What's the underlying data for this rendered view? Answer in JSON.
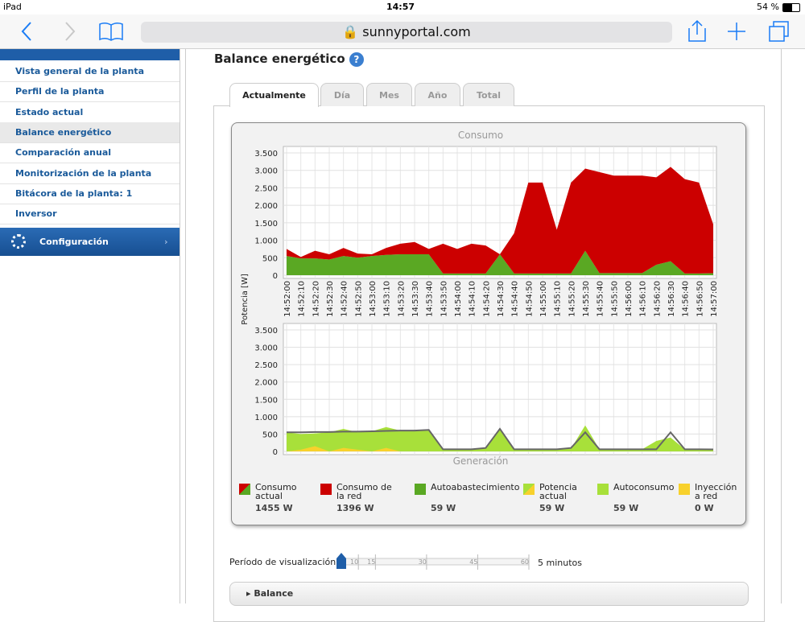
{
  "status_bar": {
    "device": "iPad",
    "time": "14:57",
    "battery": "54 %"
  },
  "browser": {
    "url": "sunnyportal.com"
  },
  "sidebar": {
    "items": [
      "Vista general de la planta",
      "Perfil de la planta",
      "Estado actual",
      "Balance energético",
      "Comparación anual",
      "Monitorización de la planta",
      "Bitácora de la planta: 1",
      "Inversor"
    ],
    "active": 3,
    "config": "Configuración"
  },
  "page": {
    "title": "Balance energético",
    "tabs": [
      "Actualmente",
      "Día",
      "Mes",
      "Año",
      "Total"
    ],
    "active_tab": 0
  },
  "chart_data": [
    {
      "type": "area",
      "title": "Consumo",
      "ylabel": "Potencia [W]",
      "categories": [
        "14:52:00",
        "14:52:10",
        "14:52:20",
        "14:52:30",
        "14:52:40",
        "14:52:50",
        "14:53:00",
        "14:53:10",
        "14:53:20",
        "14:53:30",
        "14:53:40",
        "14:53:50",
        "14:54:00",
        "14:54:10",
        "14:54:20",
        "14:54:30",
        "14:54:40",
        "14:54:50",
        "14:55:00",
        "14:55:10",
        "14:55:20",
        "14:55:30",
        "14:55:40",
        "14:55:50",
        "14:56:00",
        "14:56:10",
        "14:56:20",
        "14:56:30",
        "14:56:40",
        "14:56:50",
        "14:57:00"
      ],
      "ylim": [
        0,
        3500
      ],
      "yticks": [
        0,
        500,
        {
          "value": 1000,
          "label": "1.000"
        },
        {
          "value": 1500,
          "label": "1.500"
        },
        {
          "value": 2000,
          "label": "2.000"
        },
        {
          "value": 2500,
          "label": "2.500"
        },
        {
          "value": 3000,
          "label": "3.000"
        },
        {
          "value": 3500,
          "label": "3.500"
        }
      ],
      "grid": true,
      "series": [
        {
          "kind": "area",
          "color": "#5aa823",
          "values": [
            550,
            480,
            480,
            450,
            550,
            500,
            550,
            580,
            600,
            600,
            600,
            50,
            50,
            50,
            50,
            600,
            50,
            50,
            50,
            50,
            50,
            700,
            60,
            60,
            60,
            60,
            300,
            400,
            50,
            50,
            59
          ]
        },
        {
          "kind": "area",
          "stack": true,
          "color": "#cc0000",
          "values": [
            200,
            40,
            220,
            150,
            230,
            120,
            50,
            200,
            300,
            350,
            150,
            850,
            700,
            850,
            800,
            0,
            1150,
            2600,
            2600,
            1250,
            2600,
            2350,
            2890,
            2790,
            2790,
            2790,
            2500,
            2700,
            2700,
            2600,
            1396
          ]
        }
      ]
    },
    {
      "type": "area",
      "title": "Generación",
      "ylim": [
        0,
        3500
      ],
      "yticks": [
        0,
        500,
        {
          "value": 1000,
          "label": "1.000"
        },
        {
          "value": 1500,
          "label": "1.500"
        },
        {
          "value": 2000,
          "label": "2.000"
        },
        {
          "value": 2500,
          "label": "2.500"
        },
        {
          "value": 3000,
          "label": "3.000"
        },
        {
          "value": 3500,
          "label": "3.500"
        }
      ],
      "grid": true,
      "series": [
        {
          "kind": "area",
          "color": "#a8e03a",
          "values": [
            550,
            500,
            520,
            550,
            650,
            550,
            580,
            700,
            600,
            600,
            600,
            60,
            60,
            60,
            80,
            650,
            60,
            60,
            60,
            60,
            80,
            750,
            60,
            60,
            60,
            60,
            300,
            400,
            60,
            60,
            59
          ]
        },
        {
          "kind": "area",
          "color": "#f8d12c",
          "values": [
            0,
            50,
            150,
            0,
            100,
            50,
            0,
            100,
            0,
            0,
            0,
            0,
            0,
            0,
            0,
            0,
            0,
            0,
            0,
            0,
            0,
            0,
            0,
            0,
            0,
            0,
            0,
            0,
            0,
            0,
            0
          ]
        },
        {
          "kind": "line",
          "color": "#666666",
          "values": [
            550,
            550,
            560,
            560,
            570,
            570,
            580,
            590,
            600,
            600,
            620,
            60,
            60,
            60,
            100,
            650,
            60,
            60,
            60,
            60,
            100,
            550,
            60,
            60,
            60,
            60,
            60,
            550,
            60,
            60,
            59
          ]
        }
      ]
    }
  ],
  "legend": [
    {
      "name": "Consumo actual",
      "reading": "1455 W",
      "colors": [
        "#cc0000",
        "#5aa823"
      ]
    },
    {
      "name": "Consumo de la red",
      "reading": "1396 W",
      "colors": [
        "#cc0000"
      ]
    },
    {
      "name": "Autoabastecimiento",
      "reading": "59 W",
      "colors": [
        "#5aa823"
      ]
    },
    {
      "name": "Potencia actual",
      "reading": "59 W",
      "colors": [
        "#a8e03a",
        "#f8d12c"
      ]
    },
    {
      "name": "Autoconsumo",
      "reading": "59 W",
      "colors": [
        "#a8e03a"
      ]
    },
    {
      "name": "Inyección a red",
      "reading": "0 W",
      "colors": [
        "#f8d12c"
      ]
    }
  ],
  "slider": {
    "label": "Período de visualización",
    "range": [
      5,
      60
    ],
    "ticks": [
      10,
      15,
      30,
      45,
      60
    ],
    "value": 5,
    "value_label": "5 minutos"
  },
  "balance": "Balance"
}
